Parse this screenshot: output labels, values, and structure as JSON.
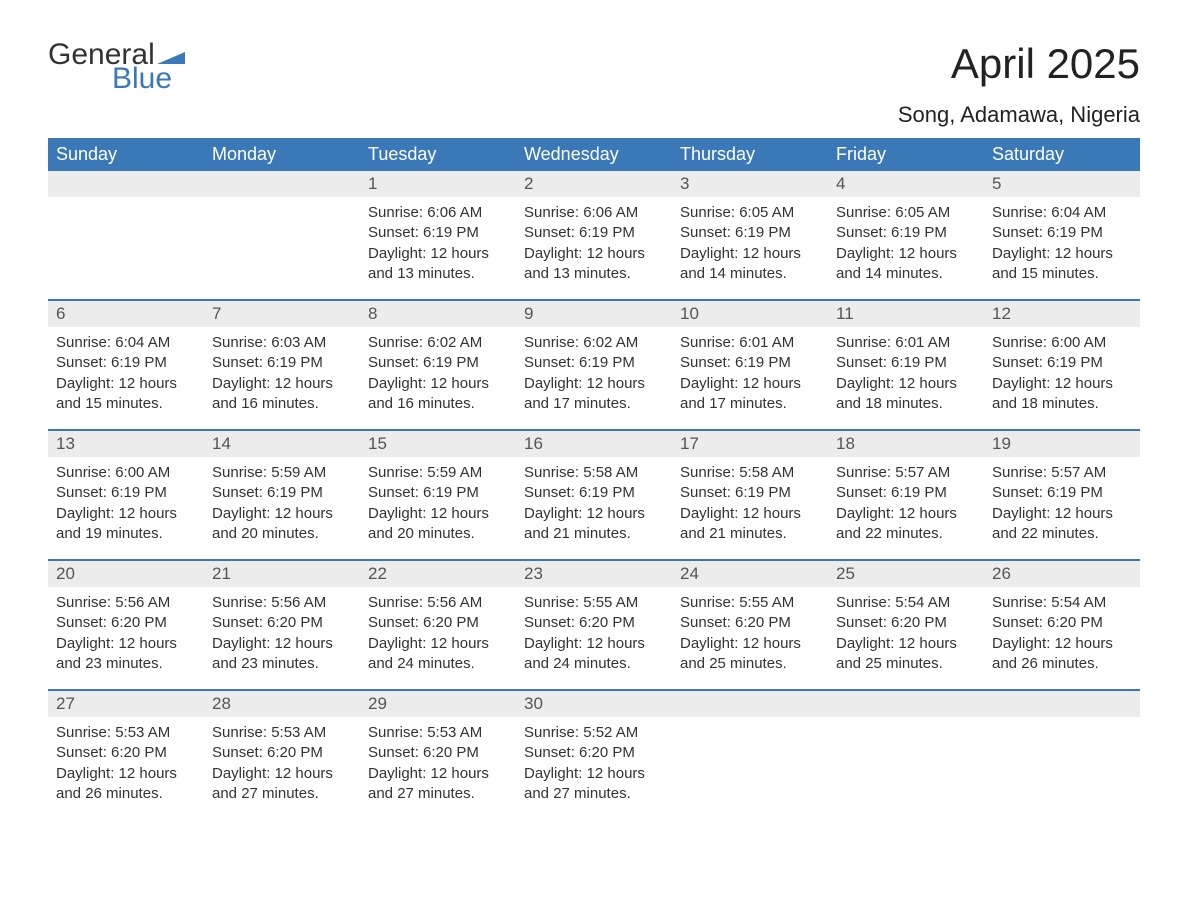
{
  "brand": {
    "general": "General",
    "blue": "Blue",
    "flag_color": "#3a78b8"
  },
  "title": "April 2025",
  "location": "Song, Adamawa, Nigeria",
  "colors": {
    "header_bg": "#3a78b8",
    "header_text": "#ffffff",
    "daynum_bg": "#ececec",
    "daynum_text": "#555555",
    "body_text": "#333333",
    "week_border": "#3a78b8",
    "page_bg": "#ffffff"
  },
  "typography": {
    "title_fontsize": 42,
    "location_fontsize": 22,
    "header_fontsize": 18,
    "daynum_fontsize": 17,
    "body_fontsize": 15
  },
  "columns": [
    "Sunday",
    "Monday",
    "Tuesday",
    "Wednesday",
    "Thursday",
    "Friday",
    "Saturday"
  ],
  "labels": {
    "sunrise": "Sunrise:",
    "sunset": "Sunset:",
    "daylight": "Daylight:"
  },
  "weeks": [
    [
      {
        "n": "",
        "empty": true
      },
      {
        "n": "",
        "empty": true
      },
      {
        "n": "1",
        "sunrise": "6:06 AM",
        "sunset": "6:19 PM",
        "daylight": "12 hours and 13 minutes."
      },
      {
        "n": "2",
        "sunrise": "6:06 AM",
        "sunset": "6:19 PM",
        "daylight": "12 hours and 13 minutes."
      },
      {
        "n": "3",
        "sunrise": "6:05 AM",
        "sunset": "6:19 PM",
        "daylight": "12 hours and 14 minutes."
      },
      {
        "n": "4",
        "sunrise": "6:05 AM",
        "sunset": "6:19 PM",
        "daylight": "12 hours and 14 minutes."
      },
      {
        "n": "5",
        "sunrise": "6:04 AM",
        "sunset": "6:19 PM",
        "daylight": "12 hours and 15 minutes."
      }
    ],
    [
      {
        "n": "6",
        "sunrise": "6:04 AM",
        "sunset": "6:19 PM",
        "daylight": "12 hours and 15 minutes."
      },
      {
        "n": "7",
        "sunrise": "6:03 AM",
        "sunset": "6:19 PM",
        "daylight": "12 hours and 16 minutes."
      },
      {
        "n": "8",
        "sunrise": "6:02 AM",
        "sunset": "6:19 PM",
        "daylight": "12 hours and 16 minutes."
      },
      {
        "n": "9",
        "sunrise": "6:02 AM",
        "sunset": "6:19 PM",
        "daylight": "12 hours and 17 minutes."
      },
      {
        "n": "10",
        "sunrise": "6:01 AM",
        "sunset": "6:19 PM",
        "daylight": "12 hours and 17 minutes."
      },
      {
        "n": "11",
        "sunrise": "6:01 AM",
        "sunset": "6:19 PM",
        "daylight": "12 hours and 18 minutes."
      },
      {
        "n": "12",
        "sunrise": "6:00 AM",
        "sunset": "6:19 PM",
        "daylight": "12 hours and 18 minutes."
      }
    ],
    [
      {
        "n": "13",
        "sunrise": "6:00 AM",
        "sunset": "6:19 PM",
        "daylight": "12 hours and 19 minutes."
      },
      {
        "n": "14",
        "sunrise": "5:59 AM",
        "sunset": "6:19 PM",
        "daylight": "12 hours and 20 minutes."
      },
      {
        "n": "15",
        "sunrise": "5:59 AM",
        "sunset": "6:19 PM",
        "daylight": "12 hours and 20 minutes."
      },
      {
        "n": "16",
        "sunrise": "5:58 AM",
        "sunset": "6:19 PM",
        "daylight": "12 hours and 21 minutes."
      },
      {
        "n": "17",
        "sunrise": "5:58 AM",
        "sunset": "6:19 PM",
        "daylight": "12 hours and 21 minutes."
      },
      {
        "n": "18",
        "sunrise": "5:57 AM",
        "sunset": "6:19 PM",
        "daylight": "12 hours and 22 minutes."
      },
      {
        "n": "19",
        "sunrise": "5:57 AM",
        "sunset": "6:19 PM",
        "daylight": "12 hours and 22 minutes."
      }
    ],
    [
      {
        "n": "20",
        "sunrise": "5:56 AM",
        "sunset": "6:20 PM",
        "daylight": "12 hours and 23 minutes."
      },
      {
        "n": "21",
        "sunrise": "5:56 AM",
        "sunset": "6:20 PM",
        "daylight": "12 hours and 23 minutes."
      },
      {
        "n": "22",
        "sunrise": "5:56 AM",
        "sunset": "6:20 PM",
        "daylight": "12 hours and 24 minutes."
      },
      {
        "n": "23",
        "sunrise": "5:55 AM",
        "sunset": "6:20 PM",
        "daylight": "12 hours and 24 minutes."
      },
      {
        "n": "24",
        "sunrise": "5:55 AM",
        "sunset": "6:20 PM",
        "daylight": "12 hours and 25 minutes."
      },
      {
        "n": "25",
        "sunrise": "5:54 AM",
        "sunset": "6:20 PM",
        "daylight": "12 hours and 25 minutes."
      },
      {
        "n": "26",
        "sunrise": "5:54 AM",
        "sunset": "6:20 PM",
        "daylight": "12 hours and 26 minutes."
      }
    ],
    [
      {
        "n": "27",
        "sunrise": "5:53 AM",
        "sunset": "6:20 PM",
        "daylight": "12 hours and 26 minutes."
      },
      {
        "n": "28",
        "sunrise": "5:53 AM",
        "sunset": "6:20 PM",
        "daylight": "12 hours and 27 minutes."
      },
      {
        "n": "29",
        "sunrise": "5:53 AM",
        "sunset": "6:20 PM",
        "daylight": "12 hours and 27 minutes."
      },
      {
        "n": "30",
        "sunrise": "5:52 AM",
        "sunset": "6:20 PM",
        "daylight": "12 hours and 27 minutes."
      },
      {
        "n": "",
        "empty": true
      },
      {
        "n": "",
        "empty": true
      },
      {
        "n": "",
        "empty": true
      }
    ]
  ]
}
